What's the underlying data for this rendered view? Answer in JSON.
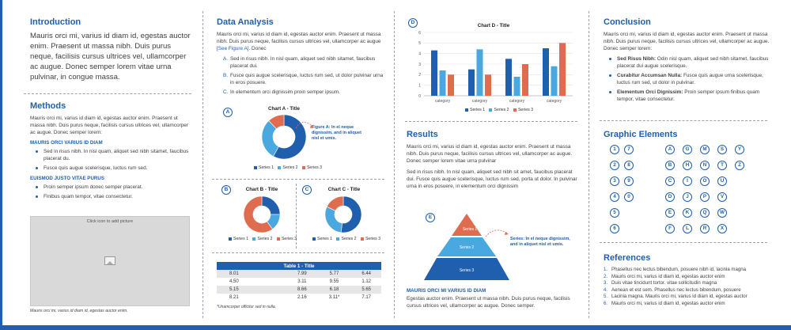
{
  "colors": {
    "accent": "#1f5fad",
    "series1": "#1f5fad",
    "series2": "#4aa8e0",
    "series3": "#e06c50"
  },
  "intro": {
    "title": "Introduction",
    "text": "Mauris orci mi, varius id diam id, egestas auctor enim. Praesent ut massa nibh. Duis purus neque, facilisis cursus ultrices vel, ullamcorper ac augue. Donec semper lorem vitae urna pulvinar, in congue massa."
  },
  "methods": {
    "title": "Methods",
    "text": "Mauris orci mi, varius id diam id, egestas auctor enim. Praesent ut massa nibh. Duis purus neque, facilisis cursus ultrices vel, ullamcorper ac augue. Donec semper lorem:",
    "sub1": "MAURIS ORCI VARIUS ID DIAM",
    "bullets1": [
      "Sed in risus nibh. In nisl quam, aliquet sed nibh sitamet, faucibus placerat du.",
      "Fusce quis augue scelerisque, luctus rum sed."
    ],
    "sub2": "EUISMOD JUSTO VITAE PURUS",
    "bullets2": [
      "Proin semper ipsum donec semper placerat.",
      "Finibus quam tempor, vitae consectetur."
    ],
    "picture_hint": "Click icon to add picture",
    "caption": "Mauris orci mi, varius id diam id, egestas auctor enim."
  },
  "analysis": {
    "title": "Data Analysis",
    "text_before": "Mauris orci mi, varius id diam id, egestas auctor enim. Praesent ut massa nibh. Duis purus neque, facilisis cursus ultrices vel, ullamcorper ac augue",
    "link": "[See Figure A]",
    "text_after": ". Donec",
    "items": [
      {
        "mark": "A.",
        "text": "Sed in risus nibh. In nisl quam, aliquet sed nibh sitamet, faucibus placerat dui."
      },
      {
        "mark": "B.",
        "text": "Fusce quis augue scelerisque, luctus rum sed, ut dolor pulvinar urna in eros posuere."
      },
      {
        "mark": "C.",
        "text": "In elementum orci dignissim proin semper ipsum."
      }
    ]
  },
  "chart_labels": {
    "a": "A",
    "b": "B",
    "c": "C",
    "d": "D",
    "e": "E"
  },
  "annotations": {
    "figure_a": "Figure A: In el neque dignissim, and in aliquet nisl et umis.",
    "series_note": "Series: In el neque dignissim, and in aliquet nisl et umis."
  },
  "chart_data": [
    {
      "type": "pie",
      "title": "Chart A - Title",
      "donut": true,
      "categories": [
        "Series 1",
        "Series 2",
        "Series 3"
      ],
      "values": [
        58,
        30,
        12
      ]
    },
    {
      "type": "pie",
      "title": "Chart B - Title",
      "donut": true,
      "categories": [
        "Series 1",
        "Series 2",
        "Series 3"
      ],
      "values": [
        25,
        15,
        60
      ]
    },
    {
      "type": "pie",
      "title": "Chart C - Title",
      "donut": true,
      "categories": [
        "Series 1",
        "Series 2",
        "Series 3"
      ],
      "values": [
        52,
        30,
        18
      ]
    },
    {
      "type": "bar",
      "title": "Chart D - Title",
      "categories": [
        "category",
        "category",
        "category",
        "category"
      ],
      "series": [
        {
          "name": "Series 1",
          "values": [
            4.3,
            2.5,
            3.5,
            4.5
          ]
        },
        {
          "name": "Series 2",
          "values": [
            2.4,
            4.4,
            1.8,
            2.8
          ]
        },
        {
          "name": "Series 3",
          "values": [
            2.0,
            2.0,
            3.0,
            5.0
          ]
        }
      ],
      "ylim": [
        0,
        6
      ],
      "yticks": [
        "0",
        "1",
        "2",
        "3",
        "4",
        "5",
        "6"
      ]
    }
  ],
  "table": {
    "title": "Table 1 - Title",
    "rows": [
      [
        "8.01",
        "7.99",
        "5.77",
        "6.44"
      ],
      [
        "4.50",
        "3.11",
        "9.55",
        "1.12"
      ],
      [
        "5.15",
        "8.66",
        "6.18",
        "5.65"
      ],
      [
        "8.21",
        "2.16",
        "3.11*",
        "7.17"
      ]
    ],
    "note": "*Unamcorper officitur sed in nulla."
  },
  "results": {
    "title": "Results",
    "p1": "Mauris orci mi, varius id diam id, egestas auctor enim. Praesent ut massa nibh. Duis purus neque, facilisis cursus ultrices vel, ullamcorper ac augue. Donec semper lorem vitae urna pulvinar",
    "p2": "Sed in risus nibh. In nisl quam, aliquet sed nibh sit amet, faucibus placerat dui. Fusce quis augue scelerisque, luctus rum sed, porta ut dolor. In pulvinar urna in eros posuere, in elementum orci dignissim",
    "pyramid": [
      "Series 1",
      "Series 2",
      "Series 3"
    ],
    "sub": "MAURIS ORCI MI VARIUS ID DIAM",
    "p3": "Egestas auctor enim. Praesent ut massa nibh. Duis purus neque, facilisis cursus ultrices vel, ullamcorper ac augue. Donec semper."
  },
  "conclusion": {
    "title": "Conclusion",
    "text": "Mauris orci mi, varius id diam id, egestas auctor enim. Praesent ut massa nibh. Duis purus neque, facilisis cursus ultrices vel, ullamcorper ac augue. Donec semper lorem:",
    "items": [
      {
        "head": "Sed Risus Nibh:",
        "body": "Odin nisl quam, aliquet sed nibh sitamet, faucibus placerat dui augue scelerisque."
      },
      {
        "head": "Curabitur Accumsan Nulla:",
        "body": "Fusce quis augue urna scelerisque, luctus rum sed, ut dolor in pulvinar."
      },
      {
        "head": "Elementum Orci Dignissim:",
        "body": "Proin semper ipsum finibus quam tempor, vitae consectetur."
      }
    ]
  },
  "graphic": {
    "title": "Graphic Elements",
    "cols": [
      [
        "1",
        "2",
        "3",
        "4",
        "5",
        "6"
      ],
      [
        "7",
        "8",
        "9",
        "0"
      ],
      [
        "A",
        "B",
        "C",
        "D",
        "E",
        "F"
      ],
      [
        "G",
        "H",
        "I",
        "J",
        "K",
        "L"
      ],
      [
        "M",
        "N",
        "O",
        "P",
        "Q",
        "R"
      ],
      [
        "S",
        "T",
        "U",
        "V",
        "W",
        "X"
      ],
      [
        "Y",
        "Z"
      ]
    ]
  },
  "references": {
    "title": "References",
    "items": [
      "Phasellus nec lectus bibendum, posuere nibh id, lacinia magna",
      "Mauris orci mi, varius id diam id, egestas auctor enim",
      "Duis vitae tincidunt tortor. vitae sollicitudin magna",
      "Aenean et est sem. Phasellus nec lectus bibendum, posuere",
      "Lacinia magna. Mauris orci mi, varius id diam id, egestas auctor",
      "Mauris orci mi, varius id diam id, egestas auctor enim"
    ]
  }
}
